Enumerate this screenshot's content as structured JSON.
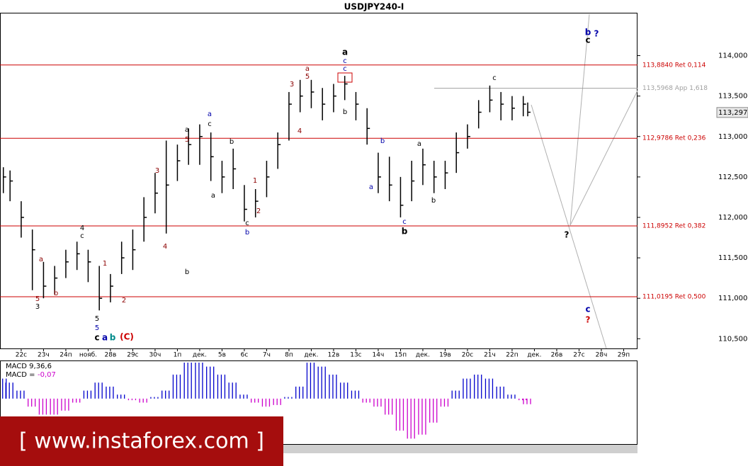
{
  "chart_data": {
    "type": "ohlc",
    "title": "USDJPY240-I",
    "color": "#000000",
    "categories": [
      "22с",
      "23ч",
      "24п",
      "нояб.",
      "28в",
      "29с",
      "30ч",
      "1п",
      "дек.",
      "5в",
      "6с",
      "7ч",
      "8п",
      "дек.",
      "12в",
      "13с",
      "14ч",
      "15п",
      "дек.",
      "19в",
      "20с",
      "21ч",
      "22п",
      "дек.",
      "26в",
      "27с",
      "28ч",
      "29п"
    ],
    "x": [
      -0.8,
      -0.5,
      0,
      0.5,
      1,
      1.5,
      2,
      2.5,
      3,
      3.5,
      4,
      4.5,
      5,
      5.5,
      6,
      6.5,
      7,
      7.5,
      8,
      8.5,
      9,
      9.5,
      10,
      10.5,
      11,
      11.5,
      12,
      12.5,
      13,
      13.5,
      14,
      14.5,
      15,
      15.5,
      16,
      16.5,
      17,
      17.5,
      18,
      18.5,
      19,
      19.5,
      20,
      20.5,
      21,
      21.5,
      22,
      22.5,
      22.7
    ],
    "high": [
      112.62,
      112.58,
      112.2,
      111.85,
      111.45,
      111.4,
      111.6,
      111.7,
      111.6,
      111.4,
      111.3,
      111.7,
      111.85,
      112.25,
      112.55,
      112.95,
      112.9,
      113.1,
      113.15,
      113.05,
      112.7,
      112.85,
      112.4,
      112.35,
      112.7,
      113.05,
      113.55,
      113.7,
      113.7,
      113.6,
      113.65,
      113.75,
      113.55,
      113.35,
      112.8,
      112.75,
      112.5,
      112.7,
      112.85,
      112.7,
      112.7,
      113.05,
      113.15,
      113.45,
      113.63,
      113.55,
      113.5,
      113.5,
      113.42
    ],
    "low": [
      112.3,
      112.2,
      111.75,
      111.1,
      111.0,
      111.05,
      111.25,
      111.35,
      111.2,
      110.85,
      110.95,
      111.3,
      111.35,
      111.7,
      112.05,
      111.8,
      112.45,
      112.65,
      112.65,
      112.45,
      112.3,
      112.35,
      111.95,
      112.0,
      112.25,
      112.6,
      112.95,
      113.3,
      113.35,
      113.2,
      113.3,
      113.45,
      113.2,
      112.9,
      112.3,
      112.2,
      112.0,
      112.2,
      112.4,
      112.3,
      112.35,
      112.55,
      112.85,
      113.1,
      113.3,
      113.2,
      113.2,
      113.25,
      113.25
    ],
    "close": [
      112.5,
      112.45,
      112.0,
      111.6,
      111.15,
      111.25,
      111.45,
      111.55,
      111.45,
      111.0,
      111.15,
      111.5,
      111.6,
      112.0,
      112.3,
      112.4,
      112.7,
      112.9,
      113.0,
      112.75,
      112.5,
      112.6,
      112.1,
      112.2,
      112.5,
      112.9,
      113.4,
      113.5,
      113.55,
      113.4,
      113.5,
      113.65,
      113.4,
      113.1,
      112.5,
      112.4,
      112.15,
      112.45,
      112.65,
      112.5,
      112.55,
      112.8,
      113.0,
      113.3,
      113.45,
      113.4,
      113.35,
      113.4,
      113.3
    ],
    "xlim": [
      -0.95,
      27.62
    ],
    "ylim": [
      110.38,
      114.53
    ],
    "yticks": [
      {
        "value": 110.5,
        "label": "110,500"
      },
      {
        "value": 111,
        "label": "111,000"
      },
      {
        "value": 111.5,
        "label": "111,500"
      },
      {
        "value": 112,
        "label": "112,000"
      },
      {
        "value": 112.5,
        "label": "112,500"
      },
      {
        "value": 113,
        "label": "113,000"
      },
      {
        "value": 113.5,
        "label": "113,500"
      },
      {
        "value": 114,
        "label": "114,000"
      }
    ],
    "levels": [
      {
        "value": 113.884,
        "label": "113,8840 Ret 0,114",
        "color": "#cc0000"
      },
      {
        "value": 113.5968,
        "label": "113,5968 App 1,618",
        "color": "#a0a0a0"
      },
      {
        "value": 112.9786,
        "label": "112,9786 Ret 0,236",
        "color": "#cc0000"
      },
      {
        "value": 111.8952,
        "label": "111,8952 Ret 0,382",
        "color": "#cc0000"
      },
      {
        "value": 111.0195,
        "label": "111,0195 Ret 0,500",
        "color": "#cc0000"
      }
    ],
    "current_price": {
      "value": 113.297,
      "label": "113,297"
    },
    "annotations": [
      {
        "text": "a",
        "color": "#000000"
      },
      {
        "text": "c",
        "color": "#0000aa"
      },
      {
        "text": "c",
        "color": "#0000aa"
      },
      {
        "text": "a",
        "color": "#8b0000"
      },
      {
        "text": "5",
        "color": "#8b0000"
      },
      {
        "text": "3",
        "color": "#8b0000"
      },
      {
        "text": "4",
        "color": "#8b0000"
      },
      {
        "text": "b",
        "color": "#000000"
      },
      {
        "text": "a",
        "color": "#0000aa"
      },
      {
        "text": "c",
        "color": "#000000"
      },
      {
        "text": "a",
        "color": "#000000"
      },
      {
        "text": "5",
        "color": "#8b0000"
      },
      {
        "text": "b",
        "color": "#000000"
      },
      {
        "text": "3",
        "color": "#8b0000"
      },
      {
        "text": "a",
        "color": "#000000"
      },
      {
        "text": "1",
        "color": "#8b0000"
      },
      {
        "text": "2",
        "color": "#8b0000"
      },
      {
        "text": "c",
        "color": "#000000"
      },
      {
        "text": "b",
        "color": "#0000aa"
      },
      {
        "text": "4",
        "color": "#000000"
      },
      {
        "text": "c",
        "color": "#000000"
      },
      {
        "text": "a",
        "color": "#8b0000"
      },
      {
        "text": "1",
        "color": "#8b0000"
      },
      {
        "text": "4",
        "color": "#8b0000"
      },
      {
        "text": "b",
        "color": "#000000"
      },
      {
        "text": "5",
        "color": "#8b0000"
      },
      {
        "text": "3",
        "color": "#000000"
      },
      {
        "text": "b",
        "color": "#8b0000"
      },
      {
        "text": "2",
        "color": "#8b0000"
      },
      {
        "text": "5",
        "color": "#000000"
      },
      {
        "text": "5",
        "color": "#0000aa"
      },
      {
        "text": "c",
        "color": "#000000"
      },
      {
        "text": "a",
        "color": "#0000aa"
      },
      {
        "text": "b",
        "color": "#008b8b"
      },
      {
        "text": "(C)",
        "color": "#cc0000"
      },
      {
        "text": "b",
        "color": "#0000aa"
      },
      {
        "text": "a",
        "color": "#0000aa"
      },
      {
        "text": "a",
        "color": "#000000"
      },
      {
        "text": "b",
        "color": "#000000"
      },
      {
        "text": "c",
        "color": "#0000aa"
      },
      {
        "text": "b",
        "color": "#000000"
      },
      {
        "text": "c",
        "color": "#000000"
      },
      {
        "text": "b",
        "color": "#0000aa"
      },
      {
        "text": "c",
        "color": "#000000"
      },
      {
        "text": "?",
        "color": "#0000aa"
      },
      {
        "text": "?",
        "color": "#000000"
      },
      {
        "text": "c",
        "color": "#0000aa"
      },
      {
        "text": "?",
        "color": "#cc0000"
      }
    ],
    "macd": {
      "label": "MACD 9,36,6",
      "value_prefix": "MACD =",
      "value_label": "-0,07",
      "up_color": "#0000cc",
      "down_color": "#cc00cc",
      "ylim": [
        -0.55,
        0.45
      ],
      "values": [
        0.25,
        0.2,
        0.1,
        -0.1,
        -0.2,
        -0.2,
        -0.15,
        -0.05,
        0.1,
        0.2,
        0.15,
        0.05,
        -0.02,
        -0.05,
        0.02,
        0.1,
        0.3,
        0.45,
        0.45,
        0.4,
        0.3,
        0.2,
        0.05,
        -0.05,
        -0.1,
        -0.08,
        0.02,
        0.15,
        0.45,
        0.4,
        0.3,
        0.2,
        0.1,
        -0.05,
        -0.1,
        -0.2,
        -0.4,
        -0.5,
        -0.45,
        -0.3,
        -0.1,
        0.1,
        0.25,
        0.3,
        0.25,
        0.15,
        0.05,
        -0.02,
        -0.07
      ]
    },
    "watermark": "[ www.instaforex.com ]"
  }
}
